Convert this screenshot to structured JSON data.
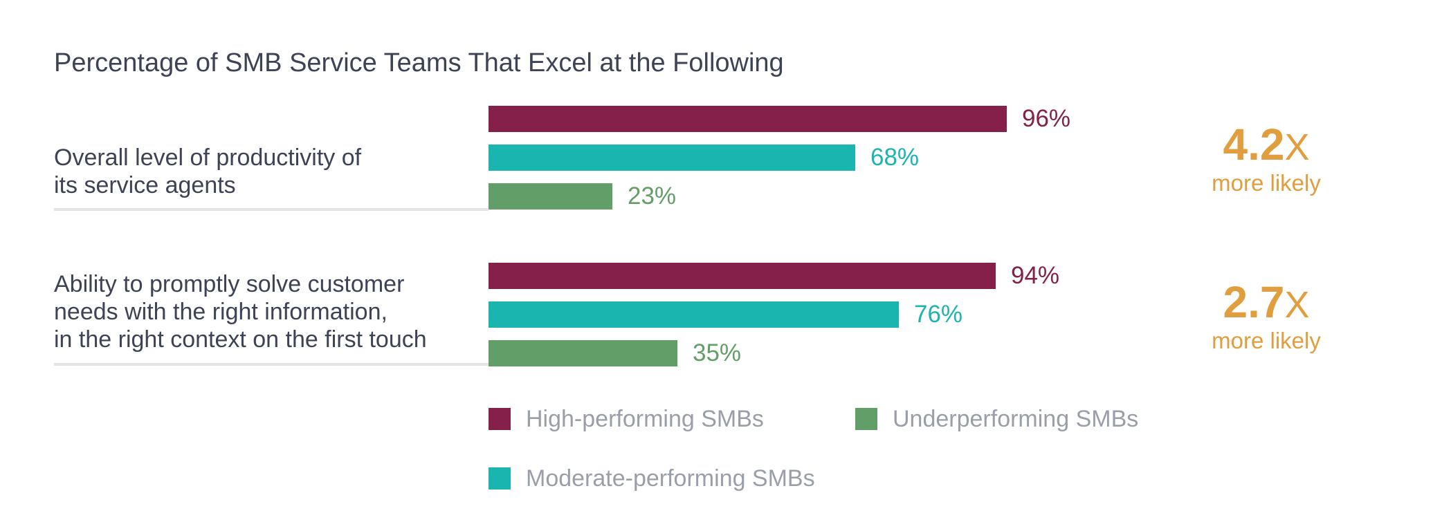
{
  "chart_data": {
    "type": "bar",
    "orientation": "horizontal",
    "title": "Percentage of SMB Service Teams That Excel at the Following",
    "categories": [
      {
        "lines": [
          "Overall level of productivity of",
          "its service agents"
        ],
        "multiplier": "4.2",
        "multiplier_suffix": "X",
        "multiplier_text": "more likely"
      },
      {
        "lines": [
          "Ability to promptly solve customer",
          "needs with the right information,",
          "in the right context on the first touch"
        ],
        "multiplier": "2.7",
        "multiplier_suffix": "X",
        "multiplier_text": "more likely"
      }
    ],
    "series": [
      {
        "name": "High-performing SMBs",
        "color": "#84204a",
        "values": [
          96,
          94
        ],
        "labels": [
          "96%",
          "94%"
        ]
      },
      {
        "name": "Moderate-performing SMBs",
        "color": "#1bb5b0",
        "values": [
          68,
          76
        ],
        "labels": [
          "68%",
          "76%"
        ]
      },
      {
        "name": "Underperforming SMBs",
        "color": "#629e68",
        "values": [
          23,
          35
        ],
        "labels": [
          "23%",
          "35%"
        ]
      }
    ],
    "xlim": [
      0,
      100
    ],
    "legend": "bottom"
  }
}
